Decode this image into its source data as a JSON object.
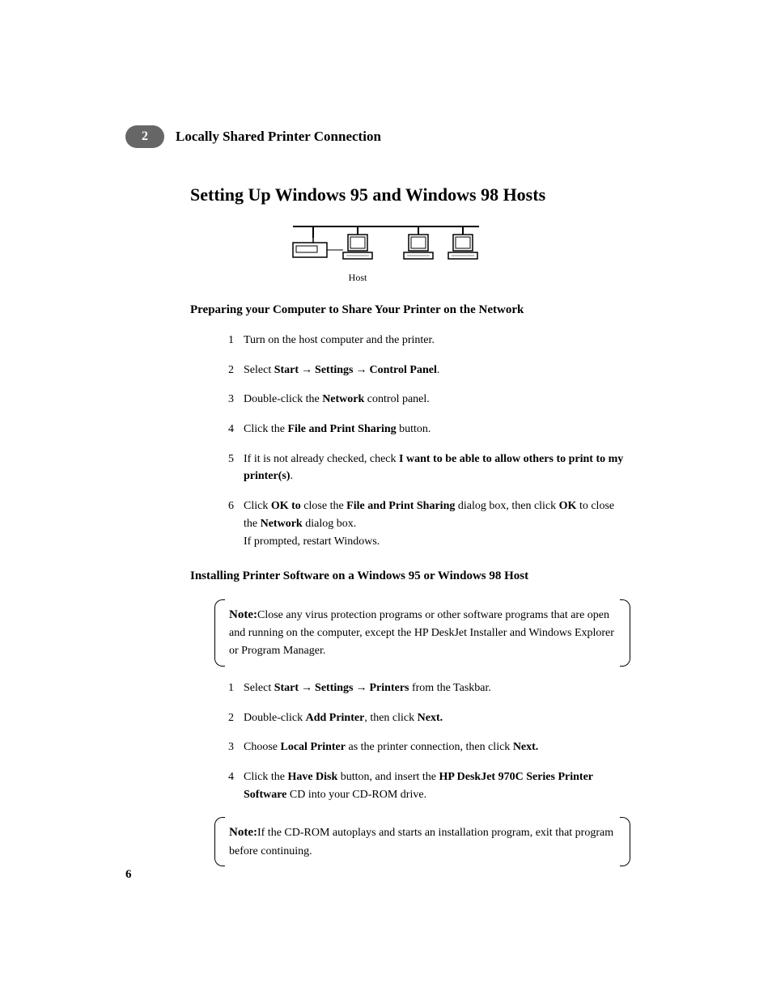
{
  "chapter": {
    "number": "2",
    "title": "Locally Shared Printer Connection"
  },
  "section_title": "Setting Up Windows 95 and Windows 98 Hosts",
  "diagram_label": "Host",
  "subheading1": "Preparing your Computer to Share Your Printer on the Network",
  "prep_steps": [
    {
      "n": "1",
      "parts": [
        {
          "t": "Turn on the host computer and the printer."
        }
      ]
    },
    {
      "n": "2",
      "parts": [
        {
          "t": "Select "
        },
        {
          "t": "Start",
          "b": true
        },
        {
          "arrow": true
        },
        {
          "t": "Settings",
          "b": true
        },
        {
          "arrow": true
        },
        {
          "t": "Control Panel",
          "b": true
        },
        {
          "t": "."
        }
      ]
    },
    {
      "n": "3",
      "parts": [
        {
          "t": "Double-click the "
        },
        {
          "t": "Network",
          "b": true
        },
        {
          "t": " control panel."
        }
      ]
    },
    {
      "n": "4",
      "parts": [
        {
          "t": "Click the "
        },
        {
          "t": "File and Print Sharing",
          "b": true
        },
        {
          "t": " button."
        }
      ]
    },
    {
      "n": "5",
      "parts": [
        {
          "t": "If it is not already checked, check "
        },
        {
          "t": "I want to be able to allow others to print to my printer(s)",
          "b": true
        },
        {
          "t": "."
        }
      ]
    },
    {
      "n": "6",
      "parts": [
        {
          "t": "Click "
        },
        {
          "t": "OK to",
          "b": true
        },
        {
          "t": " close the "
        },
        {
          "t": "File and Print Sharing",
          "b": true
        },
        {
          "t": " dialog box, then click "
        },
        {
          "t": "OK",
          "b": true
        },
        {
          "t": " to close the "
        },
        {
          "t": "Network",
          "b": true
        },
        {
          "t": " dialog box."
        },
        {
          "br": true
        },
        {
          "t": "If prompted, restart Windows."
        }
      ]
    }
  ],
  "subheading2": "Installing Printer Software on a Windows 95 or Windows 98 Host",
  "note1": {
    "label": "Note:",
    "text": "Close any virus protection programs or other software programs that are open and running on the computer, except the HP DeskJet Installer and Windows Explorer or Program Manager."
  },
  "install_steps": [
    {
      "n": "1",
      "parts": [
        {
          "t": "Select "
        },
        {
          "t": "Start",
          "b": true
        },
        {
          "arrow": true
        },
        {
          "t": "Settings",
          "b": true
        },
        {
          "arrow": true
        },
        {
          "t": "Printers",
          "b": true
        },
        {
          "t": " from the Taskbar."
        }
      ]
    },
    {
      "n": "2",
      "parts": [
        {
          "t": "Double-click "
        },
        {
          "t": "Add Printer",
          "b": true
        },
        {
          "t": ", then click "
        },
        {
          "t": "Next.",
          "b": true
        }
      ]
    },
    {
      "n": "3",
      "parts": [
        {
          "t": "Choose "
        },
        {
          "t": "Local Printer",
          "b": true
        },
        {
          "t": " as the printer connection, then click "
        },
        {
          "t": "Next.",
          "b": true
        }
      ]
    },
    {
      "n": "4",
      "parts": [
        {
          "t": "Click the "
        },
        {
          "t": "Have Disk",
          "b": true
        },
        {
          "t": " button, and insert the "
        },
        {
          "t": "HP DeskJet 970C Series Printer Software",
          "b": true
        },
        {
          "t": " CD into your CD-ROM drive."
        }
      ]
    }
  ],
  "note2": {
    "label": "Note:",
    "text": "If the CD-ROM autoplays and starts an installation program, exit that program before continuing."
  },
  "page_number": "6",
  "arrow_glyph": "→"
}
